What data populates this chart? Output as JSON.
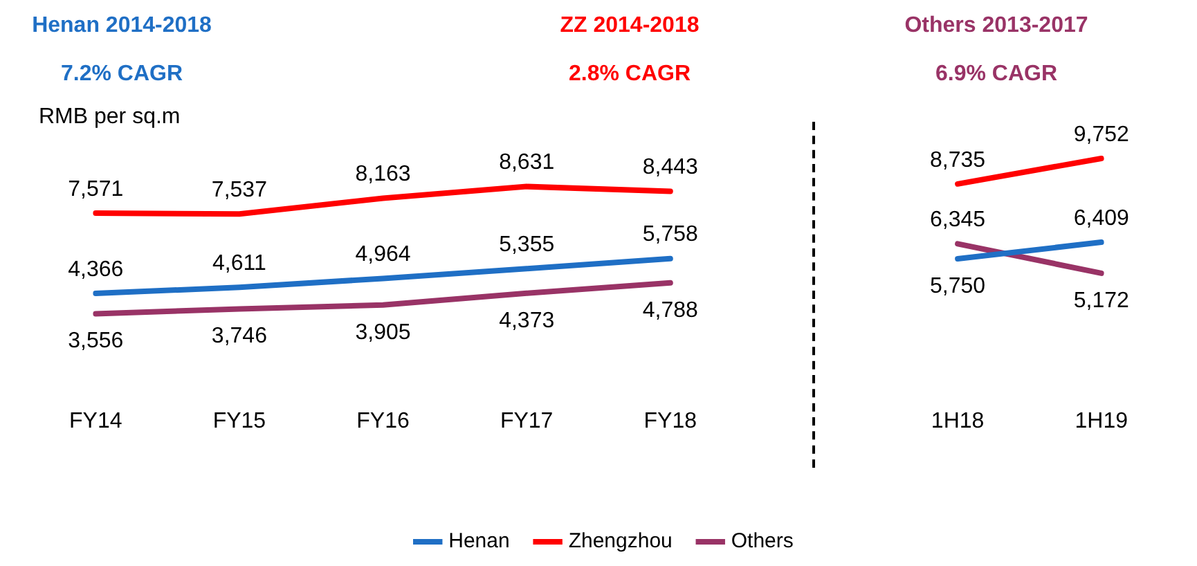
{
  "chart_data": {
    "type": "line",
    "ylabel": "RMB per sq.m",
    "annotations": [
      "Henan 2014-2018",
      "7.2% CAGR",
      "ZZ 2014-2018",
      "2.8% CAGR",
      "Others 2013-2017",
      "6.9% CAGR"
    ],
    "categories": [
      "FY14",
      "FY15",
      "FY16",
      "FY17",
      "FY18",
      null,
      "1H18",
      "1H19"
    ],
    "series": [
      {
        "name": "Henan",
        "color": "#1f6fc5",
        "values": [
          4366,
          4611,
          4964,
          5355,
          5758,
          null,
          5750,
          6409
        ],
        "value_labels": [
          "4,366",
          "4,611",
          "4,964",
          "5,355",
          "5,758",
          null,
          "5,750",
          "6,409"
        ]
      },
      {
        "name": "Zhengzhou",
        "color": "#ff0000",
        "values": [
          7571,
          7537,
          8163,
          8631,
          8443,
          null,
          8735,
          9752
        ],
        "value_labels": [
          "7,571",
          "7,537",
          "8,163",
          "8,631",
          "8,443",
          null,
          "8,735",
          "9,752"
        ]
      },
      {
        "name": "Others",
        "color": "#993366",
        "values": [
          3556,
          3746,
          3905,
          4373,
          4788,
          null,
          6345,
          5172
        ],
        "value_labels": [
          "3,556",
          "3,746",
          "3,905",
          "4,373",
          "4,788",
          null,
          "6,345",
          "5,172"
        ]
      }
    ],
    "legend": "bottom",
    "marker": "none",
    "line_style": "solid",
    "tick_labels": "x"
  }
}
